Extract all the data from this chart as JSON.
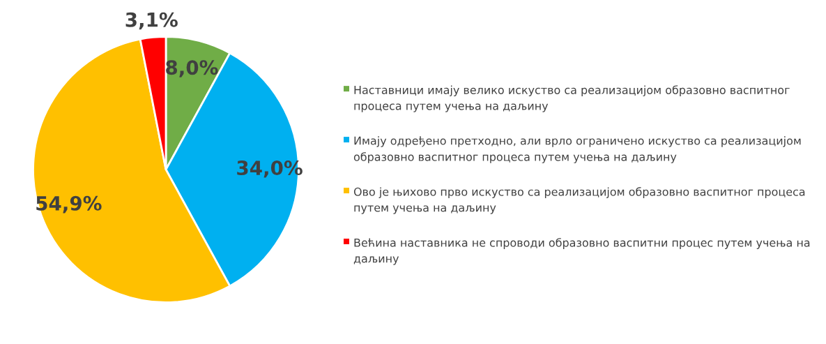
{
  "chart_data": {
    "type": "pie",
    "categories": [
      "Наставници имају велико искуство са реализацијом образовно васпитног процеса путем учења на даљину",
      "Имају одређено претходно, али врло ограничено искуство са реализацијом образовно васпитног процеса путем учења на даљину",
      "Ово је њихово прво искуство са реализацијом образовно васпитног процеса путем учења на даљину",
      "Већина наставника не спроводи образовно васпитни процес путем учења на даљину"
    ],
    "values": [
      8.0,
      34.0,
      54.9,
      3.1
    ],
    "colors": [
      "#70ad47",
      "#00b0f0",
      "#ffc000",
      "#ff0000"
    ],
    "value_labels": [
      "8,0%",
      "34,0%",
      "54,9%",
      "3,1%"
    ],
    "legend": "right"
  }
}
